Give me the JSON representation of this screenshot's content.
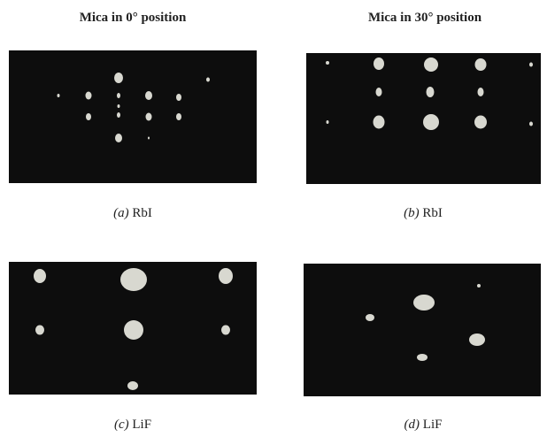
{
  "headers": [
    "Mica in 0° position",
    "Mica in 30° position"
  ],
  "panels": [
    {
      "label": "(a)",
      "text": "RbI"
    },
    {
      "label": "(b)",
      "text": "RbI"
    },
    {
      "label": "(c)",
      "text": "LiF"
    },
    {
      "label": "(d)",
      "text": "LiF"
    }
  ]
}
